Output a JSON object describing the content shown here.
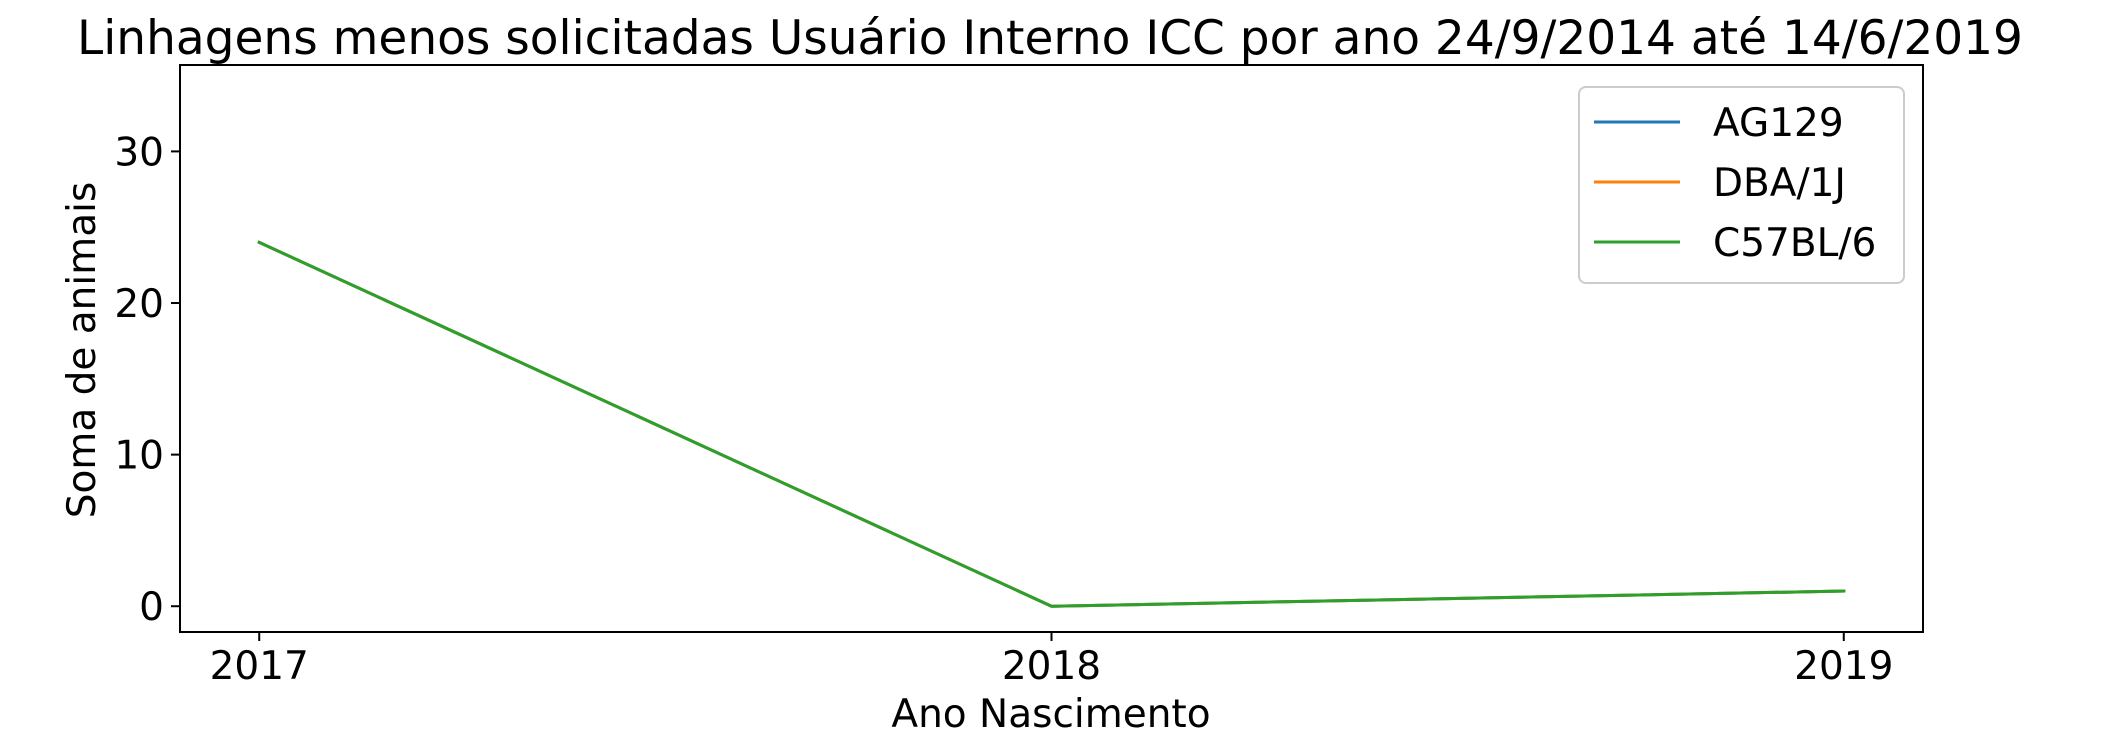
{
  "chart_data": {
    "type": "line",
    "title": "Linhagens menos solicitadas Usuário Interno ICC por ano 24/9/2014 até 14/6/2019",
    "xlabel": "Ano Nascimento",
    "ylabel": "Soma de animais",
    "x": [
      "2017",
      "2018",
      "2019"
    ],
    "xlim": [
      2016.9,
      2019.1
    ],
    "ylim": [
      -1.7,
      35.7
    ],
    "yticks": [
      0,
      10,
      20,
      30
    ],
    "grid": false,
    "legend_position": "top-right",
    "series": [
      {
        "name": "AG129",
        "color": "#1f77b4",
        "values": [
          24,
          0,
          1
        ]
      },
      {
        "name": "DBA/1J",
        "color": "#ff7f0e",
        "values": [
          24,
          0,
          1
        ]
      },
      {
        "name": "C57BL/6",
        "color": "#2ca02c",
        "values": [
          24,
          0,
          1
        ]
      }
    ]
  }
}
